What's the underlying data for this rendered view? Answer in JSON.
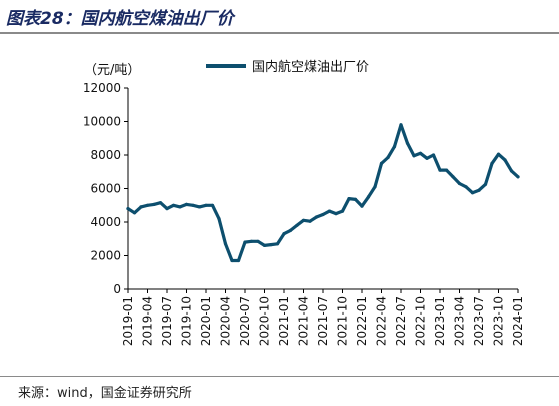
{
  "header": {
    "title": "图表28：国内航空煤油出厂价"
  },
  "footer": {
    "source": "来源：wind，国金证券研究所"
  },
  "chart_data": {
    "type": "line",
    "title": "",
    "xlabel": "",
    "ylabel": "",
    "unit_label": "（元/吨）",
    "ylim": [
      0,
      12000
    ],
    "yticks": [
      0,
      2000,
      4000,
      6000,
      8000,
      10000,
      12000
    ],
    "grid": false,
    "legend_position": "top-center",
    "x_tick_labels": [
      "2019-01",
      "2019-04",
      "2019-07",
      "2019-10",
      "2020-01",
      "2020-04",
      "2020-07",
      "2020-10",
      "2021-01",
      "2021-04",
      "2021-07",
      "2021-10",
      "2022-01",
      "2022-04",
      "2022-07",
      "2022-10",
      "2023-01",
      "2023-04",
      "2023-07",
      "2023-10",
      "2024-01"
    ],
    "x": [
      "2019-01",
      "2019-02",
      "2019-03",
      "2019-04",
      "2019-05",
      "2019-06",
      "2019-07",
      "2019-08",
      "2019-09",
      "2019-10",
      "2019-11",
      "2019-12",
      "2020-01",
      "2020-02",
      "2020-03",
      "2020-04",
      "2020-05",
      "2020-06",
      "2020-07",
      "2020-08",
      "2020-09",
      "2020-10",
      "2020-11",
      "2020-12",
      "2021-01",
      "2021-02",
      "2021-03",
      "2021-04",
      "2021-05",
      "2021-06",
      "2021-07",
      "2021-08",
      "2021-09",
      "2021-10",
      "2021-11",
      "2021-12",
      "2022-01",
      "2022-02",
      "2022-03",
      "2022-04",
      "2022-05",
      "2022-06",
      "2022-07",
      "2022-08",
      "2022-09",
      "2022-10",
      "2022-11",
      "2022-12",
      "2023-01",
      "2023-02",
      "2023-03",
      "2023-04",
      "2023-05",
      "2023-06",
      "2023-07",
      "2023-08",
      "2023-09",
      "2023-10",
      "2023-11",
      "2023-12",
      "2024-01"
    ],
    "series": [
      {
        "name": "国内航空煤油出厂价",
        "color": "#0d4f6e",
        "values": [
          4800,
          4550,
          4900,
          5000,
          5050,
          5150,
          4800,
          5000,
          4900,
          5050,
          5000,
          4900,
          5000,
          5000,
          4200,
          2700,
          1700,
          1700,
          2800,
          2850,
          2850,
          2600,
          2650,
          2700,
          3300,
          3500,
          3800,
          4100,
          4050,
          4300,
          4450,
          4650,
          4500,
          4650,
          5400,
          5350,
          4950,
          5500,
          6100,
          7500,
          7850,
          8500,
          9800,
          8700,
          7950,
          8100,
          7800,
          8000,
          7100,
          7100,
          6700,
          6300,
          6100,
          5750,
          5900,
          6250,
          7500,
          8050,
          7700,
          7050,
          6700
        ]
      }
    ]
  }
}
